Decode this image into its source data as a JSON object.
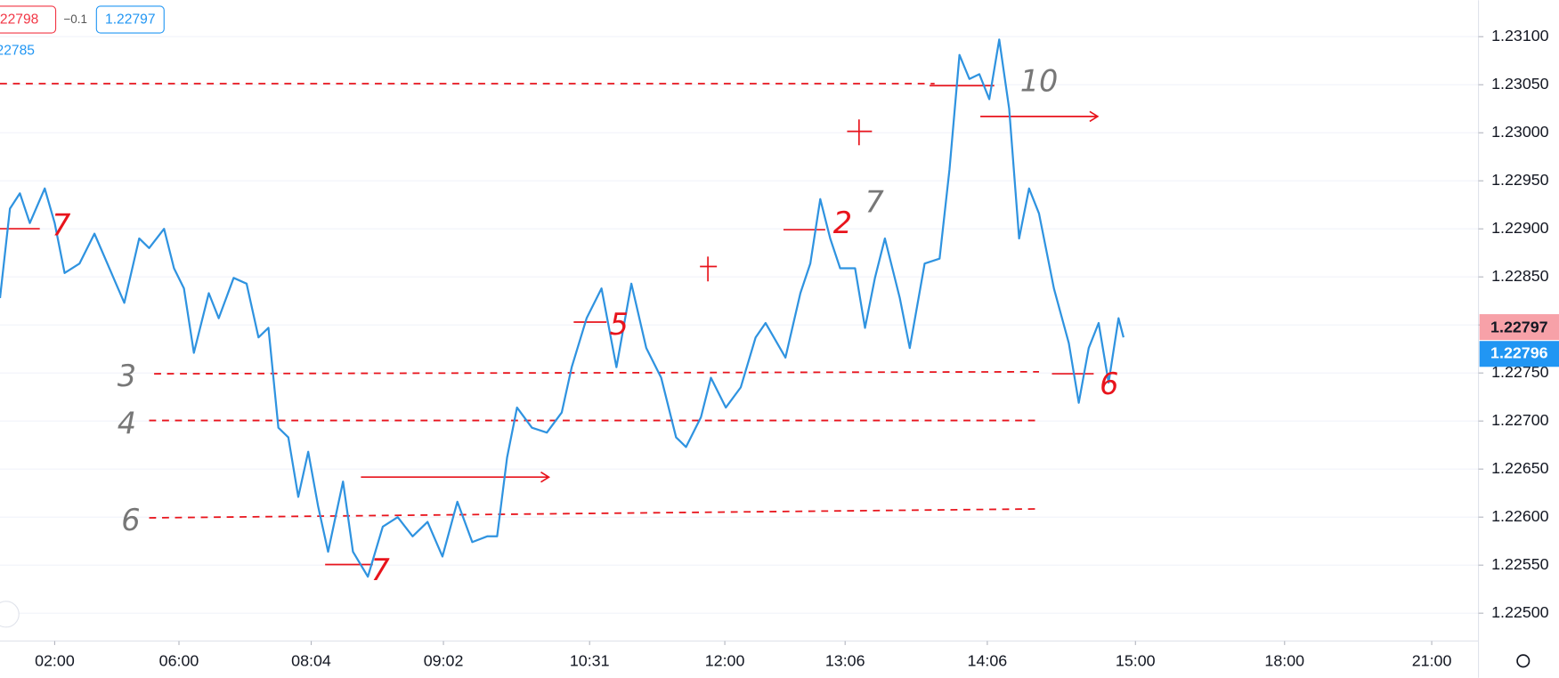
{
  "chart_data": {
    "type": "line",
    "legend_values": [
      ".22798",
      "−0.1",
      "1.22797"
    ],
    "sub_value": "22785",
    "last_price_labels": [
      "1.22797",
      "1.22796"
    ],
    "x": [
      0,
      1,
      2,
      3,
      4.5,
      5.5,
      6.5,
      8,
      9.5,
      11,
      12.5,
      14,
      15,
      16.5,
      17.5,
      18.5,
      19.5,
      21,
      22,
      23.5,
      24.8,
      26,
      27,
      28,
      29,
      30,
      31,
      32,
      33,
      34.5,
      35.5,
      37,
      38.5,
      40,
      41.5,
      43,
      44.5,
      46,
      47.5,
      49,
      50,
      51,
      52,
      53.5,
      55,
      56.5,
      57.5,
      59,
      60.5,
      62,
      63.5,
      65,
      66.5,
      68,
      69,
      70.5,
      71.5,
      73,
      74.5,
      76,
      77,
      79,
      80.5,
      81.5,
      82.5,
      83.5,
      84.5,
      86,
      87,
      88,
      89,
      90.5,
      91.5,
      93,
      94.5,
      95.5,
      96.5,
      97.5,
      98.5,
      99.5,
      100.5,
      101.5,
      102.5,
      103.5,
      104.5,
      106,
      107.5,
      108.5,
      109.5,
      110.5,
      111.5,
      112.5,
      113
    ],
    "series": [
      {
        "color": "#2f93e0",
        "values": [
          1.22828,
          1.22921,
          1.22937,
          1.22906,
          1.22942,
          1.22906,
          1.22854,
          1.22864,
          1.22895,
          1.22859,
          1.22823,
          1.2289,
          1.2288,
          1.229,
          1.22859,
          1.22838,
          1.22771,
          1.22833,
          1.22807,
          1.22849,
          1.22843,
          1.22787,
          1.22797,
          1.22693,
          1.22683,
          1.22621,
          1.22668,
          1.22611,
          1.22564,
          1.22637,
          1.22564,
          1.22538,
          1.2259,
          1.226,
          1.2258,
          1.22595,
          1.22559,
          1.22616,
          1.22574,
          1.2258,
          1.2258,
          1.22662,
          1.22714,
          1.22693,
          1.22688,
          1.22709,
          1.22756,
          1.22807,
          1.22838,
          1.22756,
          1.22843,
          1.22776,
          1.22745,
          1.22683,
          1.22673,
          1.22704,
          1.22745,
          1.22714,
          1.22735,
          1.22787,
          1.22802,
          1.22766,
          1.22833,
          1.22864,
          1.22931,
          1.2289,
          1.22859,
          1.22859,
          1.22797,
          1.22849,
          1.2289,
          1.22828,
          1.22776,
          1.22864,
          1.22869,
          1.22962,
          1.23081,
          1.23056,
          1.23061,
          1.23035,
          1.23097,
          1.23025,
          1.2289,
          1.22942,
          1.22916,
          1.22838,
          1.22781,
          1.22719,
          1.22776,
          1.22802,
          1.2274,
          1.22807,
          1.22787
        ]
      }
    ],
    "xlim": [
      0,
      148.7
    ],
    "xticks": [
      {
        "value": 5.5,
        "label": "02:00"
      },
      {
        "value": 18,
        "label": "06:00"
      },
      {
        "value": 31.3,
        "label": "08:04"
      },
      {
        "value": 44.6,
        "label": "09:02"
      },
      {
        "value": 59.3,
        "label": "10:31"
      },
      {
        "value": 72.9,
        "label": "12:00"
      },
      {
        "value": 85,
        "label": "13:06"
      },
      {
        "value": 99.3,
        "label": "14:06"
      },
      {
        "value": 114.2,
        "label": "15:00"
      },
      {
        "value": 129.2,
        "label": "18:00"
      },
      {
        "value": 144,
        "label": "21:00"
      }
    ],
    "ylim": [
      1.22471,
      1.23138
    ],
    "yticks": [
      {
        "value": 1.225,
        "label": "1.22500"
      },
      {
        "value": 1.2255,
        "label": "1.22550"
      },
      {
        "value": 1.226,
        "label": "1.22600"
      },
      {
        "value": 1.2265,
        "label": "1.22650"
      },
      {
        "value": 1.227,
        "label": "1.22700"
      },
      {
        "value": 1.2275,
        "label": "1.22750"
      },
      {
        "value": 1.228,
        "label": "1.22800"
      },
      {
        "value": 1.2285,
        "label": "1.22850"
      },
      {
        "value": 1.229,
        "label": "1.22900"
      },
      {
        "value": 1.2295,
        "label": "1.22950"
      },
      {
        "value": 1.23,
        "label": "1.23000"
      },
      {
        "value": 1.2305,
        "label": "1.23050"
      },
      {
        "value": 1.231,
        "label": "1.23100"
      }
    ],
    "grid": true,
    "annotations": [
      "3",
      "4",
      "6",
      "7",
      "5",
      "2",
      "7",
      "10",
      "7",
      "6"
    ]
  }
}
